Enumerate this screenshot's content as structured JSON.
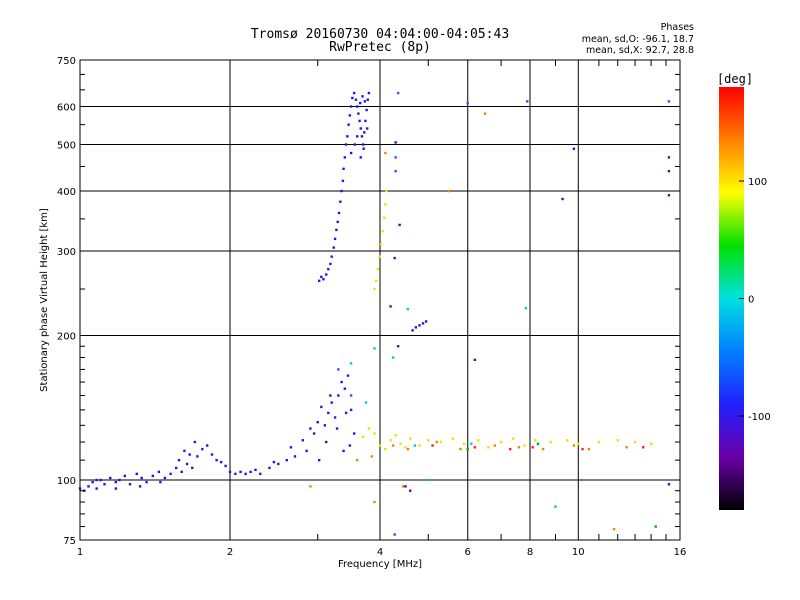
{
  "chart_data": {
    "type": "scatter",
    "title": "Tromsø 20160730 04:04:00-04:05:43",
    "subtitle": "RwPretec (8p)",
    "xlabel": "Frequency [MHz]",
    "ylabel": "Stationary phase Virtual Height [km]",
    "x_scale": "log",
    "y_scale": "log",
    "xlim": [
      1,
      16
    ],
    "ylim": [
      75,
      750
    ],
    "x_ticks": [
      "1",
      "2",
      "4",
      "6",
      "8",
      "10",
      "16"
    ],
    "y_ticks": [
      "75",
      "100",
      "200",
      "300",
      "400",
      "500",
      "600",
      "750"
    ],
    "grid": true,
    "stats": {
      "heading": "Phases",
      "line_o": "mean, sd,O: -96.1, 18.7",
      "line_x": "mean, sd,X:  92.7, 28.8"
    },
    "colorbar": {
      "label": "[deg]",
      "range": [
        -180,
        180
      ],
      "ticks": [
        "100",
        "0",
        "-100"
      ],
      "colormap": [
        "#000000",
        "#6a00a8",
        "#2020ff",
        "#0080ff",
        "#00e0e0",
        "#00e000",
        "#ffff00",
        "#ff8000",
        "#ff0000"
      ]
    },
    "series": [
      {
        "color": "#1a1ae6",
        "phase": -100,
        "points": [
          [
            1.0,
            96
          ],
          [
            1.02,
            95
          ],
          [
            1.04,
            97
          ],
          [
            1.06,
            99
          ],
          [
            1.08,
            96
          ],
          [
            1.1,
            100
          ],
          [
            1.12,
            98
          ],
          [
            1.15,
            101
          ],
          [
            1.18,
            99
          ],
          [
            1.2,
            100
          ],
          [
            1.23,
            102
          ],
          [
            1.26,
            98
          ],
          [
            1.3,
            103
          ],
          [
            1.33,
            101
          ],
          [
            1.36,
            99
          ],
          [
            1.4,
            102
          ],
          [
            1.44,
            104
          ],
          [
            1.48,
            101
          ],
          [
            1.52,
            103
          ],
          [
            1.56,
            106
          ],
          [
            1.6,
            104
          ],
          [
            1.64,
            108
          ],
          [
            1.68,
            106
          ],
          [
            1.72,
            112
          ],
          [
            1.76,
            116
          ],
          [
            1.8,
            118
          ],
          [
            1.84,
            113
          ],
          [
            1.88,
            110
          ],
          [
            1.92,
            109
          ],
          [
            1.96,
            107
          ],
          [
            2.0,
            104
          ],
          [
            2.05,
            103
          ],
          [
            2.1,
            104
          ],
          [
            2.15,
            103
          ],
          [
            2.2,
            104
          ],
          [
            2.3,
            103
          ],
          [
            2.4,
            106
          ],
          [
            2.5,
            108
          ],
          [
            2.6,
            110
          ],
          [
            2.7,
            112
          ],
          [
            2.8,
            121
          ],
          [
            2.9,
            128
          ],
          [
            3.0,
            132
          ],
          [
            3.05,
            142
          ],
          [
            3.1,
            130
          ],
          [
            3.15,
            138
          ],
          [
            3.2,
            145
          ],
          [
            3.25,
            135
          ],
          [
            3.3,
            150
          ],
          [
            3.35,
            160
          ],
          [
            3.4,
            155
          ],
          [
            3.45,
            165
          ],
          [
            3.5,
            140
          ],
          [
            3.55,
            125
          ],
          [
            1.08,
            100
          ],
          [
            1.18,
            96
          ],
          [
            1.32,
            97
          ],
          [
            1.45,
            99
          ],
          [
            1.58,
            110
          ],
          [
            1.7,
            120
          ],
          [
            1.62,
            115
          ],
          [
            1.66,
            113
          ],
          [
            2.25,
            105
          ],
          [
            2.45,
            109
          ],
          [
            2.65,
            117
          ],
          [
            3.02,
            110
          ],
          [
            3.12,
            120
          ],
          [
            3.28,
            128
          ],
          [
            3.38,
            115
          ],
          [
            3.48,
            118
          ],
          [
            2.85,
            115
          ],
          [
            2.95,
            125
          ],
          [
            3.18,
            150
          ],
          [
            3.42,
            138
          ]
        ]
      },
      {
        "color": "#1a1ae6",
        "phase": -100,
        "points": [
          [
            3.02,
            260
          ],
          [
            3.05,
            265
          ],
          [
            3.08,
            262
          ],
          [
            3.12,
            268
          ],
          [
            3.15,
            275
          ],
          [
            3.18,
            282
          ],
          [
            3.2,
            292
          ],
          [
            3.23,
            305
          ],
          [
            3.25,
            318
          ],
          [
            3.27,
            332
          ],
          [
            3.29,
            345
          ],
          [
            3.31,
            360
          ],
          [
            3.33,
            380
          ],
          [
            3.35,
            400
          ],
          [
            3.37,
            420
          ],
          [
            3.38,
            445
          ],
          [
            3.4,
            470
          ],
          [
            3.42,
            500
          ],
          [
            3.44,
            520
          ],
          [
            3.46,
            550
          ],
          [
            3.48,
            575
          ],
          [
            3.5,
            600
          ],
          [
            3.52,
            625
          ],
          [
            3.55,
            640
          ],
          [
            3.58,
            620
          ],
          [
            3.6,
            600
          ],
          [
            3.62,
            580
          ],
          [
            3.64,
            560
          ],
          [
            3.66,
            540
          ],
          [
            3.68,
            520
          ],
          [
            3.7,
            500
          ],
          [
            3.72,
            530
          ],
          [
            3.74,
            560
          ],
          [
            3.76,
            590
          ],
          [
            3.78,
            620
          ],
          [
            3.8,
            640
          ],
          [
            3.65,
            610
          ],
          [
            3.69,
            630
          ],
          [
            3.73,
            615
          ],
          [
            3.5,
            480
          ],
          [
            3.56,
            500
          ],
          [
            3.6,
            520
          ],
          [
            3.66,
            470
          ],
          [
            3.71,
            490
          ],
          [
            3.77,
            540
          ]
        ]
      },
      {
        "color": "#1a1ae6",
        "phase": -100,
        "points": [
          [
            4.65,
            205
          ],
          [
            4.72,
            208
          ],
          [
            4.8,
            210
          ],
          [
            4.88,
            212
          ],
          [
            4.95,
            214
          ]
        ]
      },
      {
        "color": "#e6e600",
        "phase": 110,
        "points": [
          [
            3.9,
            250
          ],
          [
            3.93,
            260
          ],
          [
            3.96,
            275
          ],
          [
            3.99,
            292
          ],
          [
            4.02,
            310
          ],
          [
            4.05,
            330
          ],
          [
            4.08,
            352
          ],
          [
            4.1,
            375
          ],
          [
            4.12,
            400
          ],
          [
            4.0,
            118
          ],
          [
            4.2,
            121
          ],
          [
            4.4,
            119
          ],
          [
            4.6,
            122
          ],
          [
            4.8,
            118
          ],
          [
            5.0,
            121
          ],
          [
            5.3,
            120
          ],
          [
            5.6,
            122
          ],
          [
            5.9,
            119
          ],
          [
            6.3,
            121
          ],
          [
            6.6,
            117
          ],
          [
            7.0,
            120
          ],
          [
            7.4,
            122
          ],
          [
            7.8,
            118
          ],
          [
            8.2,
            121
          ],
          [
            8.8,
            120
          ],
          [
            9.5,
            121
          ],
          [
            10.0,
            119
          ],
          [
            11.0,
            120
          ],
          [
            12.0,
            121
          ],
          [
            13.0,
            120
          ],
          [
            14.0,
            119
          ],
          [
            3.7,
            123
          ],
          [
            3.8,
            128
          ],
          [
            3.9,
            125
          ],
          [
            4.1,
            116
          ],
          [
            4.3,
            124
          ],
          [
            4.5,
            117
          ]
        ]
      },
      {
        "color": "#ff8000",
        "phase": 150,
        "points": [
          [
            4.1,
            480
          ],
          [
            5.5,
            400
          ],
          [
            6.5,
            580
          ],
          [
            3.6,
            110
          ],
          [
            3.85,
            112
          ],
          [
            4.25,
            118
          ],
          [
            4.55,
            116
          ],
          [
            5.2,
            120
          ],
          [
            5.8,
            116
          ],
          [
            6.8,
            118
          ],
          [
            7.6,
            117
          ],
          [
            8.5,
            116
          ],
          [
            9.8,
            118
          ],
          [
            10.5,
            116
          ],
          [
            12.5,
            117
          ],
          [
            2.9,
            97
          ],
          [
            4.45,
            97
          ],
          [
            3.9,
            90
          ],
          [
            11.8,
            79
          ]
        ]
      },
      {
        "color": "#ff2020",
        "phase": 175,
        "points": [
          [
            5.1,
            118
          ],
          [
            6.2,
            117
          ],
          [
            7.3,
            116
          ],
          [
            8.1,
            117
          ],
          [
            10.2,
            116
          ],
          [
            13.5,
            117
          ]
        ]
      },
      {
        "color": "#00c8e0",
        "phase": 20,
        "points": [
          [
            3.5,
            175
          ],
          [
            3.9,
            188
          ],
          [
            4.55,
            227
          ],
          [
            7.85,
            228
          ],
          [
            5.0,
            100
          ],
          [
            9.0,
            88
          ],
          [
            4.25,
            180
          ],
          [
            3.75,
            145
          ],
          [
            4.7,
            118
          ],
          [
            6.1,
            119
          ]
        ]
      },
      {
        "color": "#00b400",
        "phase": 45,
        "points": [
          [
            14.3,
            80
          ],
          [
            6.0,
            116
          ],
          [
            8.3,
            119
          ]
        ]
      },
      {
        "color": "#6a00a8",
        "phase": -150,
        "points": [
          [
            4.3,
            505
          ],
          [
            4.38,
            340
          ],
          [
            4.28,
            290
          ],
          [
            6.2,
            178
          ],
          [
            9.8,
            490
          ],
          [
            9.3,
            385
          ],
          [
            15.2,
            470
          ],
          [
            15.2,
            440
          ],
          [
            15.2,
            392
          ],
          [
            15.2,
            98
          ],
          [
            4.6,
            95
          ],
          [
            4.2,
            230
          ],
          [
            4.35,
            190
          ],
          [
            4.5,
            97
          ]
        ]
      },
      {
        "color": "#3050ff",
        "phase": -110,
        "points": [
          [
            4.35,
            640
          ],
          [
            6.0,
            610
          ],
          [
            7.9,
            615
          ],
          [
            15.2,
            615
          ],
          [
            4.3,
            470
          ],
          [
            4.3,
            440
          ],
          [
            3.5,
            150
          ],
          [
            3.3,
            170
          ],
          [
            4.28,
            77
          ]
        ]
      }
    ]
  }
}
